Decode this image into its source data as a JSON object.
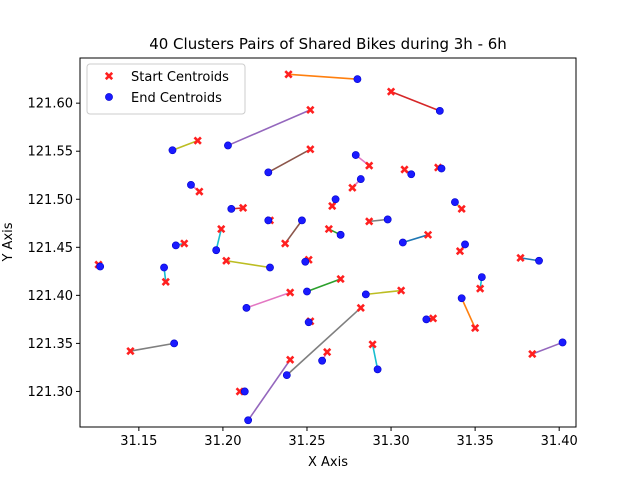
{
  "chart_data": {
    "type": "scatter",
    "title": "40 Clusters Pairs of Shared Bikes during 3h - 6h",
    "xlabel": "X Axis",
    "ylabel": "Y Axis",
    "xlim": [
      31.115,
      31.41
    ],
    "ylim": [
      121.263,
      121.647
    ],
    "xticks": [
      31.15,
      31.2,
      31.25,
      31.3,
      31.35,
      31.4
    ],
    "xtick_labels": [
      "31.15",
      "31.20",
      "31.25",
      "31.30",
      "31.35",
      "31.40"
    ],
    "yticks": [
      121.3,
      121.35,
      121.4,
      121.45,
      121.5,
      121.55,
      121.6
    ],
    "ytick_labels": [
      "121.30",
      "121.35",
      "121.40",
      "121.45",
      "121.50",
      "121.55",
      "121.60"
    ],
    "legend": {
      "position": "top-left",
      "entries": [
        {
          "label": "Start Centroids",
          "marker": "x",
          "color": "#ff2020"
        },
        {
          "label": "End Centroids",
          "marker": "o",
          "color": "#1a1aff"
        }
      ]
    },
    "pairs": [
      {
        "start": [
          31.239,
          121.63
        ],
        "end": [
          31.28,
          121.625
        ],
        "color": "#ff7f0e"
      },
      {
        "start": [
          31.3,
          121.612
        ],
        "end": [
          31.329,
          121.592
        ],
        "color": "#d62728"
      },
      {
        "start": [
          31.252,
          121.593
        ],
        "end": [
          31.203,
          121.556
        ],
        "color": "#9467bd"
      },
      {
        "start": [
          31.185,
          121.561
        ],
        "end": [
          31.17,
          121.551
        ],
        "color": "#bcbd22"
      },
      {
        "start": [
          31.252,
          121.552
        ],
        "end": [
          31.227,
          121.528
        ],
        "color": "#8c564b"
      },
      {
        "start": [
          31.287,
          121.535
        ],
        "end": [
          31.279,
          121.546
        ],
        "color": "#e377c2"
      },
      {
        "start": [
          31.308,
          121.531
        ],
        "end": [
          31.312,
          121.526
        ],
        "color": "#7f7f7f"
      },
      {
        "start": [
          31.328,
          121.533
        ],
        "end": [
          31.33,
          121.532
        ],
        "color": "#bcbd22"
      },
      {
        "start": [
          31.186,
          121.508
        ],
        "end": [
          31.181,
          121.515
        ],
        "color": "#e377c2"
      },
      {
        "start": [
          31.277,
          121.512
        ],
        "end": [
          31.282,
          121.521
        ],
        "color": "#e377c2"
      },
      {
        "start": [
          31.342,
          121.49
        ],
        "end": [
          31.338,
          121.497
        ],
        "color": "#bcbd22"
      },
      {
        "start": [
          31.212,
          121.491
        ],
        "end": [
          31.205,
          121.49
        ],
        "color": "#d62728"
      },
      {
        "start": [
          31.265,
          121.493
        ],
        "end": [
          31.267,
          121.5
        ],
        "color": "#8c564b"
      },
      {
        "start": [
          31.177,
          121.454
        ],
        "end": [
          31.172,
          121.452
        ],
        "color": "#17becf"
      },
      {
        "start": [
          31.228,
          121.478
        ],
        "end": [
          31.227,
          121.478
        ],
        "color": "#d62728"
      },
      {
        "start": [
          31.237,
          121.454
        ],
        "end": [
          31.247,
          121.478
        ],
        "color": "#8c564b"
      },
      {
        "start": [
          31.287,
          121.477
        ],
        "end": [
          31.298,
          121.479
        ],
        "color": "#7f7f7f"
      },
      {
        "start": [
          31.263,
          121.469
        ],
        "end": [
          31.27,
          121.463
        ],
        "color": "#2ca02c"
      },
      {
        "start": [
          31.199,
          121.469
        ],
        "end": [
          31.196,
          121.447
        ],
        "color": "#17becf"
      },
      {
        "start": [
          31.322,
          121.463
        ],
        "end": [
          31.307,
          121.455
        ],
        "color": "#1f77b4"
      },
      {
        "start": [
          31.341,
          121.446
        ],
        "end": [
          31.344,
          121.453
        ],
        "color": "#ff7f0e"
      },
      {
        "start": [
          31.202,
          121.436
        ],
        "end": [
          31.228,
          121.429
        ],
        "color": "#bcbd22"
      },
      {
        "start": [
          31.251,
          121.437
        ],
        "end": [
          31.249,
          121.435
        ],
        "color": "#17becf"
      },
      {
        "start": [
          31.126,
          121.432
        ],
        "end": [
          31.127,
          121.43
        ],
        "color": "#e377c2"
      },
      {
        "start": [
          31.166,
          121.414
        ],
        "end": [
          31.165,
          121.429
        ],
        "color": "#17becf"
      },
      {
        "start": [
          31.377,
          121.439
        ],
        "end": [
          31.388,
          121.436
        ],
        "color": "#1f77b4"
      },
      {
        "start": [
          31.353,
          121.407
        ],
        "end": [
          31.354,
          121.419
        ],
        "color": "#17becf"
      },
      {
        "start": [
          31.27,
          121.417
        ],
        "end": [
          31.25,
          121.404
        ],
        "color": "#2ca02c"
      },
      {
        "start": [
          31.306,
          121.405
        ],
        "end": [
          31.285,
          121.401
        ],
        "color": "#bcbd22"
      },
      {
        "start": [
          31.24,
          121.403
        ],
        "end": [
          31.214,
          121.387
        ],
        "color": "#e377c2"
      },
      {
        "start": [
          31.35,
          121.366
        ],
        "end": [
          31.342,
          121.397
        ],
        "color": "#ff7f0e"
      },
      {
        "start": [
          31.252,
          121.373
        ],
        "end": [
          31.251,
          121.372
        ],
        "color": "#17becf"
      },
      {
        "start": [
          31.325,
          121.376
        ],
        "end": [
          31.321,
          121.375
        ],
        "color": "#d62728"
      },
      {
        "start": [
          31.282,
          121.387
        ],
        "end": [
          31.238,
          121.317
        ],
        "color": "#7f7f7f"
      },
      {
        "start": [
          31.145,
          121.342
        ],
        "end": [
          31.171,
          121.35
        ],
        "color": "#7f7f7f"
      },
      {
        "start": [
          31.289,
          121.349
        ],
        "end": [
          31.292,
          121.323
        ],
        "color": "#17becf"
      },
      {
        "start": [
          31.262,
          121.341
        ],
        "end": [
          31.259,
          121.332
        ],
        "color": "#e377c2"
      },
      {
        "start": [
          31.384,
          121.339
        ],
        "end": [
          31.402,
          121.351
        ],
        "color": "#9467bd"
      },
      {
        "start": [
          31.24,
          121.333
        ],
        "end": [
          31.215,
          121.27
        ],
        "color": "#9467bd"
      },
      {
        "start": [
          31.21,
          121.3
        ],
        "end": [
          31.213,
          121.3
        ],
        "color": "#d62728"
      }
    ]
  }
}
